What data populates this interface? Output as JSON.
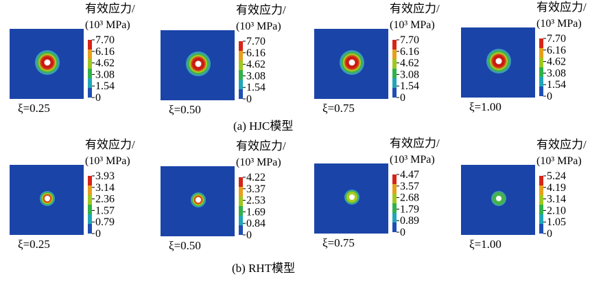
{
  "rows": [
    {
      "caption": "(a) HJC模型",
      "panels": [
        {
          "title": "有效应力/",
          "unit": "(10³ MPa)",
          "ticks": [
            "7.70",
            "6.16",
            "4.62",
            "3.08",
            "1.54",
            "0"
          ],
          "xi": "ξ=0.25",
          "level": 0.95
        },
        {
          "title": "有效应力/",
          "unit": "(10³ MPa)",
          "ticks": [
            "7.70",
            "6.16",
            "4.62",
            "3.08",
            "1.54",
            "0"
          ],
          "xi": "ξ=0.50",
          "level": 1.0
        },
        {
          "title": "有效应力/",
          "unit": "(10³ MPa)",
          "ticks": [
            "7.70",
            "6.16",
            "4.62",
            "3.08",
            "1.54",
            "0"
          ],
          "xi": "ξ=0.75",
          "level": 1.0
        },
        {
          "title": "有效应力/",
          "unit": "(10³ MPa)",
          "ticks": [
            "7.70",
            "6.16",
            "4.62",
            "3.08",
            "1.54",
            "0"
          ],
          "xi": "ξ=1.00",
          "level": 1.0
        }
      ]
    },
    {
      "caption": "(b) RHT模型",
      "panels": [
        {
          "title": "有效应力/",
          "unit": "(10³ MPa)",
          "ticks": [
            "3.93",
            "3.14",
            "2.36",
            "1.57",
            "0.79",
            "0"
          ],
          "xi": "ξ=0.25",
          "level": 0.95
        },
        {
          "title": "有效应力/",
          "unit": "(10³ MPa)",
          "ticks": [
            "4.22",
            "3.37",
            "2.53",
            "1.69",
            "0.84",
            "0"
          ],
          "xi": "ξ=0.50",
          "level": 0.8
        },
        {
          "title": "有效应力/",
          "unit": "(10³ MPa)",
          "ticks": [
            "4.47",
            "3.57",
            "2.68",
            "1.79",
            "0.89",
            "0"
          ],
          "xi": "ξ=0.75",
          "level": 0.6
        },
        {
          "title": "有效应力/",
          "unit": "(10³ MPa)",
          "ticks": [
            "5.24",
            "4.19",
            "3.14",
            "2.10",
            "1.05",
            "0"
          ],
          "xi": "ξ=1.00",
          "level": 0.45
        }
      ]
    }
  ],
  "colors": {
    "domain": "#1a44a8",
    "colorbar": [
      "#d62418",
      "#e8a01a",
      "#9ec81e",
      "#2fb24a",
      "#1fa6b8",
      "#1f4fb5"
    ],
    "contour": [
      "#3c9bb8",
      "#45b34b",
      "#a8cc22",
      "#d8541b",
      "#c81c14"
    ],
    "hole": "#ffffff"
  }
}
